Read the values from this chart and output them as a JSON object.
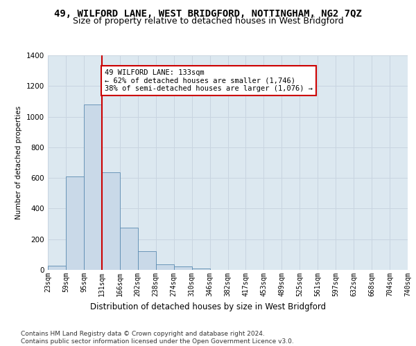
{
  "title_line1": "49, WILFORD LANE, WEST BRIDGFORD, NOTTINGHAM, NG2 7QZ",
  "title_line2": "Size of property relative to detached houses in West Bridgford",
  "xlabel": "Distribution of detached houses by size in West Bridgford",
  "ylabel": "Number of detached properties",
  "bins": [
    "23sqm",
    "59sqm",
    "95sqm",
    "131sqm",
    "166sqm",
    "202sqm",
    "238sqm",
    "274sqm",
    "310sqm",
    "346sqm",
    "382sqm",
    "417sqm",
    "453sqm",
    "489sqm",
    "525sqm",
    "561sqm",
    "597sqm",
    "632sqm",
    "668sqm",
    "704sqm",
    "740sqm"
  ],
  "bar_values": [
    28,
    610,
    1080,
    635,
    275,
    120,
    38,
    22,
    10,
    0,
    0,
    0,
    0,
    0,
    0,
    0,
    0,
    0,
    0,
    0
  ],
  "bar_color": "#c9d9e8",
  "bar_edge_color": "#5a8ab0",
  "vline_color": "#cc0000",
  "annotation_text": "49 WILFORD LANE: 133sqm\n← 62% of detached houses are smaller (1,746)\n38% of semi-detached houses are larger (1,076) →",
  "annotation_box_color": "#ffffff",
  "annotation_box_edge": "#cc0000",
  "ylim": [
    0,
    1400
  ],
  "yticks": [
    0,
    200,
    400,
    600,
    800,
    1000,
    1200,
    1400
  ],
  "grid_color": "#c8d4e0",
  "background_color": "#dce8f0",
  "footnote": "Contains HM Land Registry data © Crown copyright and database right 2024.\nContains public sector information licensed under the Open Government Licence v3.0.",
  "title_fontsize": 10,
  "subtitle_fontsize": 9,
  "annotation_fontsize": 7.5,
  "footnote_fontsize": 6.5,
  "xlabel_fontsize": 8.5,
  "ylabel_fontsize": 7.5,
  "tick_fontsize": 7
}
